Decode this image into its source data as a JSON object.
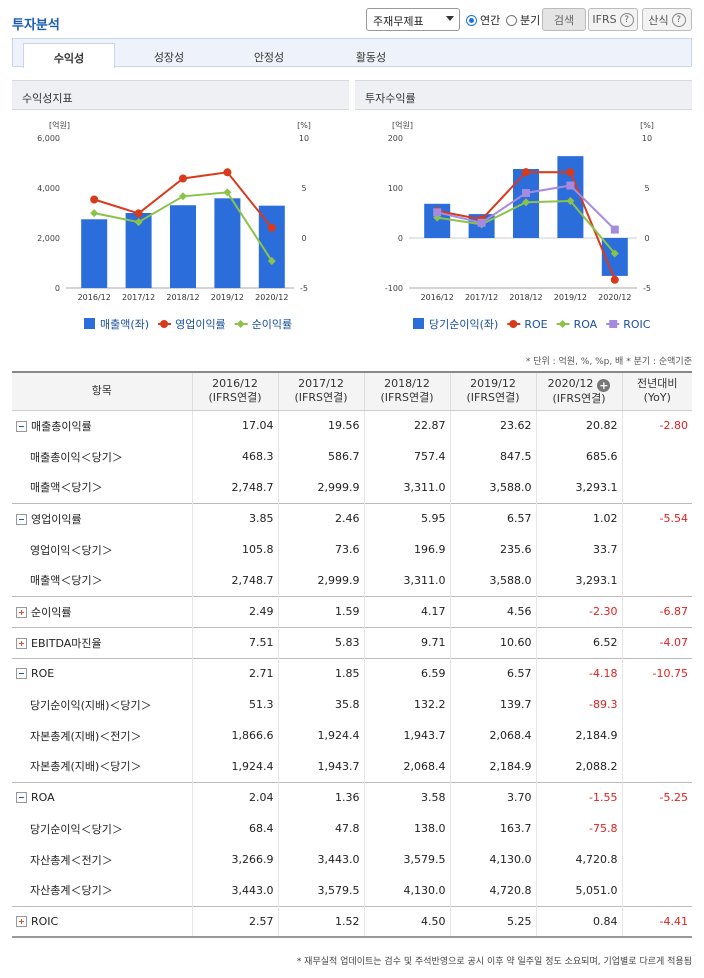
{
  "header": {
    "title": "투자분석",
    "select_value": "주재무제표",
    "radio_annual": "연간",
    "radio_quarter": "분기",
    "search_label": "검색",
    "ifrs_label": "IFRS",
    "formula_label": "산식"
  },
  "tabs": [
    "수익성",
    "성장성",
    "안정성",
    "활동성"
  ],
  "panels": {
    "left_title": "수익성지표",
    "right_title": "투자수익률"
  },
  "colors": {
    "bar": "#2a6ddb",
    "red": "#d83a1c",
    "green": "#8bc34a",
    "purple": "#a58be0",
    "neg": "#e02020"
  },
  "chart_data": [
    {
      "type": "bar",
      "categories": [
        "2016/12",
        "2017/12",
        "2018/12",
        "2019/12",
        "2020/12"
      ],
      "left_unit": "[억원]",
      "right_unit": "[%]",
      "left_ticks": [
        "6,000",
        "4,000",
        "2,000",
        "0"
      ],
      "right_ticks": [
        "10",
        "5",
        "0",
        "-5"
      ],
      "ylim_left": [
        0,
        6000
      ],
      "ylim_right": [
        -5,
        10
      ],
      "series": [
        {
          "name": "매출액(좌)",
          "kind": "bar",
          "axis": "left",
          "values": [
            2748.7,
            2999.9,
            3311.0,
            3588.0,
            3293.1
          ]
        },
        {
          "name": "영업이익률",
          "kind": "line",
          "axis": "right",
          "values": [
            3.85,
            2.46,
            5.95,
            6.57,
            1.02
          ]
        },
        {
          "name": "순이익률",
          "kind": "line",
          "axis": "right",
          "values": [
            2.49,
            1.59,
            4.17,
            4.56,
            -2.3
          ]
        }
      ]
    },
    {
      "type": "bar",
      "categories": [
        "2016/12",
        "2017/12",
        "2018/12",
        "2019/12",
        "2020/12"
      ],
      "left_unit": "[억원]",
      "right_unit": "[%]",
      "left_ticks": [
        "200",
        "100",
        "0",
        "-100"
      ],
      "right_ticks": [
        "10",
        "5",
        "0",
        "-5"
      ],
      "ylim_left": [
        -100,
        200
      ],
      "ylim_right": [
        -5,
        10
      ],
      "series": [
        {
          "name": "당기순이익(좌)",
          "kind": "bar",
          "axis": "left",
          "values": [
            68.4,
            47.8,
            138.0,
            163.7,
            -75.8
          ]
        },
        {
          "name": "ROE",
          "kind": "line",
          "axis": "right",
          "values": [
            2.71,
            1.85,
            6.59,
            6.57,
            -4.18
          ]
        },
        {
          "name": "ROA",
          "kind": "line",
          "axis": "right",
          "values": [
            2.04,
            1.36,
            3.58,
            3.7,
            -1.55
          ]
        },
        {
          "name": "ROIC",
          "kind": "line",
          "axis": "right",
          "values": [
            2.57,
            1.52,
            4.5,
            5.25,
            0.84
          ]
        }
      ]
    }
  ],
  "unit_note": "* 단위 : 억원, %, %p, 배   * 분기 : 순액기준",
  "table": {
    "head_item": "항목",
    "columns": [
      {
        "year": "2016/12",
        "basis": "(IFRS연결)"
      },
      {
        "year": "2017/12",
        "basis": "(IFRS연결)"
      },
      {
        "year": "2018/12",
        "basis": "(IFRS연결)"
      },
      {
        "year": "2019/12",
        "basis": "(IFRS연결)"
      },
      {
        "year": "2020/12",
        "basis": "(IFRS연결)"
      }
    ],
    "yoy_line1": "전년대비",
    "yoy_line2": "(YoY)",
    "rows": [
      {
        "label": "매출총이익률",
        "kind": "minus",
        "values": [
          "17.04",
          "19.56",
          "22.87",
          "23.62",
          "20.82"
        ],
        "yoy": "-2.80"
      },
      {
        "label": "매출총이익＜당기＞",
        "kind": "sub",
        "values": [
          "468.3",
          "586.7",
          "757.4",
          "847.5",
          "685.6"
        ],
        "yoy": ""
      },
      {
        "label": "매출액＜당기＞",
        "kind": "sub",
        "values": [
          "2,748.7",
          "2,999.9",
          "3,311.0",
          "3,588.0",
          "3,293.1"
        ],
        "yoy": ""
      },
      {
        "label": "영업이익률",
        "kind": "minus",
        "values": [
          "3.85",
          "2.46",
          "5.95",
          "6.57",
          "1.02"
        ],
        "yoy": "-5.54"
      },
      {
        "label": "영업이익＜당기＞",
        "kind": "sub",
        "values": [
          "105.8",
          "73.6",
          "196.9",
          "235.6",
          "33.7"
        ],
        "yoy": ""
      },
      {
        "label": "매출액＜당기＞",
        "kind": "sub",
        "values": [
          "2,748.7",
          "2,999.9",
          "3,311.0",
          "3,588.0",
          "3,293.1"
        ],
        "yoy": ""
      },
      {
        "label": "순이익률",
        "kind": "plus",
        "values": [
          "2.49",
          "1.59",
          "4.17",
          "4.56",
          "-2.30"
        ],
        "yoy": "-6.87"
      },
      {
        "label": "EBITDA마진율",
        "kind": "plus",
        "values": [
          "7.51",
          "5.83",
          "9.71",
          "10.60",
          "6.52"
        ],
        "yoy": "-4.07"
      },
      {
        "label": "ROE",
        "kind": "minus",
        "values": [
          "2.71",
          "1.85",
          "6.59",
          "6.57",
          "-4.18"
        ],
        "yoy": "-10.75"
      },
      {
        "label": "당기순이익(지배)＜당기＞",
        "kind": "sub",
        "values": [
          "51.3",
          "35.8",
          "132.2",
          "139.7",
          "-89.3"
        ],
        "yoy": ""
      },
      {
        "label": "자본총계(지배)＜전기＞",
        "kind": "sub",
        "values": [
          "1,866.6",
          "1,924.4",
          "1,943.7",
          "2,068.4",
          "2,184.9"
        ],
        "yoy": ""
      },
      {
        "label": "자본총계(지배)＜당기＞",
        "kind": "sub",
        "values": [
          "1,924.4",
          "1,943.7",
          "2,068.4",
          "2,184.9",
          "2,088.2"
        ],
        "yoy": ""
      },
      {
        "label": "ROA",
        "kind": "minus",
        "values": [
          "2.04",
          "1.36",
          "3.58",
          "3.70",
          "-1.55"
        ],
        "yoy": "-5.25"
      },
      {
        "label": "당기순이익＜당기＞",
        "kind": "sub",
        "values": [
          "68.4",
          "47.8",
          "138.0",
          "163.7",
          "-75.8"
        ],
        "yoy": ""
      },
      {
        "label": "자산총계＜전기＞",
        "kind": "sub",
        "values": [
          "3,266.9",
          "3,443.0",
          "3,579.5",
          "4,130.0",
          "4,720.8"
        ],
        "yoy": ""
      },
      {
        "label": "자산총계＜당기＞",
        "kind": "sub",
        "values": [
          "3,443.0",
          "3,579.5",
          "4,130.0",
          "4,720.8",
          "5,051.0"
        ],
        "yoy": ""
      },
      {
        "label": "ROIC",
        "kind": "plus",
        "values": [
          "2.57",
          "1.52",
          "4.50",
          "5.25",
          "0.84"
        ],
        "yoy": "-4.41"
      }
    ]
  },
  "footnote": "* 재무실적 업데이트는 검수 및 주석반영으로 공시 이후 약 일주일 정도 소요되며, 기업별로 다르게 적용됨"
}
